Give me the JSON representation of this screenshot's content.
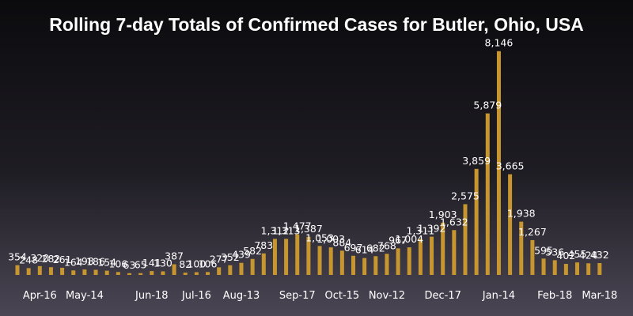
{
  "chart_data": {
    "type": "bar",
    "title": "Rolling 7-day Totals of Confirmed Cases for Butler, Ohio, USA",
    "xlabel": "",
    "ylabel": "",
    "ylim": [
      0,
      8800
    ],
    "grid": false,
    "legend": "none",
    "bar_color": "#c8962e",
    "values": [
      354,
      248,
      320,
      282,
      261,
      164,
      198,
      186,
      154,
      106,
      63,
      65,
      141,
      130,
      387,
      82,
      100,
      106,
      277,
      352,
      439,
      582,
      783,
      1312,
      1313,
      1477,
      1387,
      1053,
      1003,
      884,
      697,
      614,
      682,
      768,
      967,
      1004,
      1311,
      1392,
      1903,
      1632,
      2575,
      3859,
      5879,
      8146,
      3665,
      1938,
      1267,
      595,
      536,
      402,
      455,
      424,
      432
    ],
    "value_labels": [
      "354",
      "248",
      "320",
      "282",
      "261",
      "164",
      "198",
      "186",
      "154",
      "106",
      "63",
      "65",
      "141",
      "130",
      "387",
      "82",
      "100",
      "106",
      "277",
      "352",
      "439",
      "582",
      "783",
      "1,312",
      "1,313",
      "1,477",
      "1,387",
      "1,053",
      "1,003",
      "884",
      "697",
      "614",
      "682",
      "768",
      "967",
      "1,004",
      "1,311",
      "1,392",
      "1,903",
      "1,632",
      "2,575",
      "3,859",
      "5,879",
      "8,146",
      "3,665",
      "1,938",
      "1,267",
      "595",
      "536",
      "402",
      "455",
      "424",
      "432"
    ],
    "x_ticks": [
      {
        "index": 2,
        "label": "Apr-16"
      },
      {
        "index": 6,
        "label": "May-14"
      },
      {
        "index": 12,
        "label": "Jun-18"
      },
      {
        "index": 16,
        "label": "Jul-16"
      },
      {
        "index": 20,
        "label": "Aug-13"
      },
      {
        "index": 25,
        "label": "Sep-17"
      },
      {
        "index": 29,
        "label": "Oct-15"
      },
      {
        "index": 33,
        "label": "Nov-12"
      },
      {
        "index": 38,
        "label": "Dec-17"
      },
      {
        "index": 43,
        "label": "Jan-14"
      },
      {
        "index": 48,
        "label": "Feb-18"
      },
      {
        "index": 52,
        "label": "Mar-18"
      }
    ]
  }
}
